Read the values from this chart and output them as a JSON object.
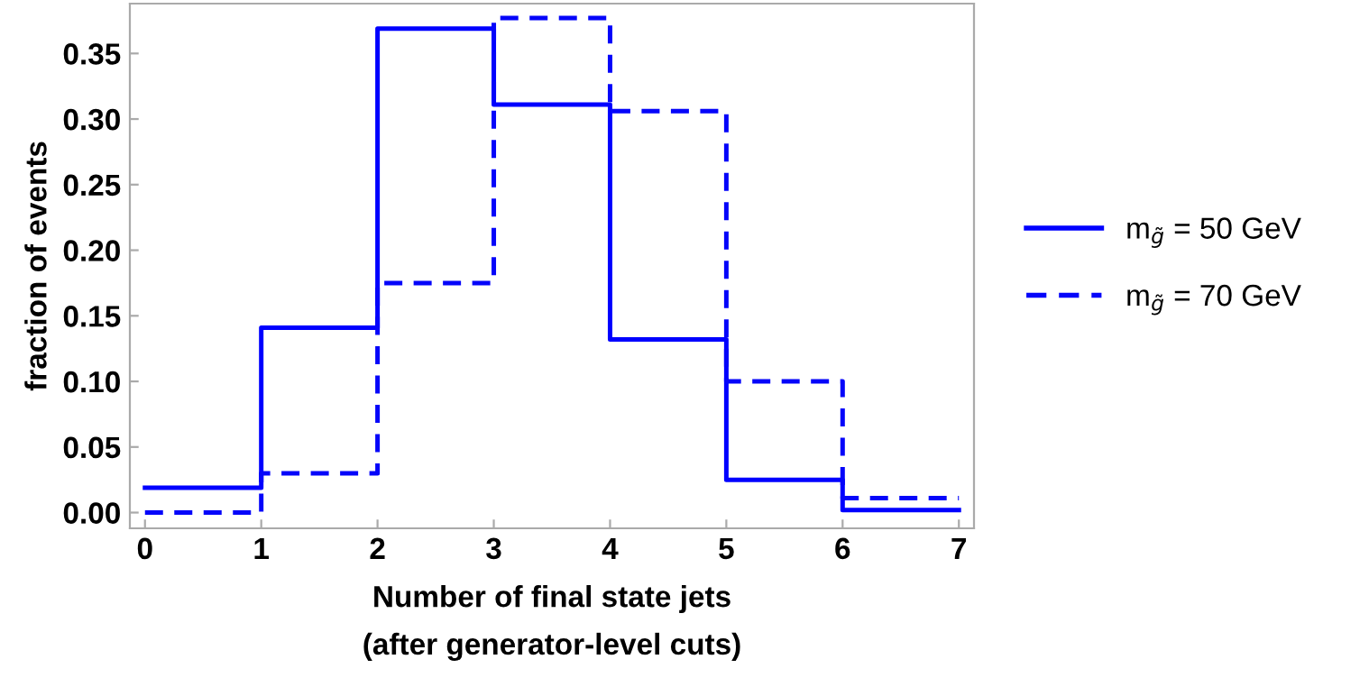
{
  "chart_data": {
    "type": "histogram",
    "xlabel": "Number of final state jets\n(after generator-level cuts)",
    "ylabel": "fraction of events",
    "bins": [
      0,
      1,
      2,
      3,
      4,
      5,
      6,
      7
    ],
    "series": [
      {
        "name": "m$_{g̃}$ = 50 GeV",
        "color": "#0000ff",
        "line_style": "solid",
        "values": [
          0.019,
          0.141,
          0.369,
          0.311,
          0.132,
          0.025,
          0.002
        ]
      },
      {
        "name": "m$_{g̃}$ = 70 GeV",
        "color": "#0505fa",
        "line_style": "dashed",
        "values": [
          0.0,
          0.03,
          0.175,
          0.377,
          0.306,
          0.1,
          0.011
        ]
      }
    ],
    "xlim": [
      -0.13,
      7.13
    ],
    "ylim": [
      -0.012,
      0.388
    ],
    "xticks": [
      0,
      1,
      2,
      3,
      4,
      5,
      6,
      7
    ],
    "yticks": [
      {
        "value": 0,
        "label": "0.00"
      },
      {
        "value": 0.05,
        "label": "0.05"
      },
      {
        "value": 0.1,
        "label": "0.10"
      },
      {
        "value": 0.15,
        "label": "0.15"
      },
      {
        "value": 0.2,
        "label": "0.20"
      },
      {
        "value": 0.25,
        "label": "0.25"
      },
      {
        "value": 0.3,
        "label": "0.30"
      },
      {
        "value": 0.35,
        "label": "0.35"
      }
    ],
    "grid": false,
    "legend": "right"
  }
}
